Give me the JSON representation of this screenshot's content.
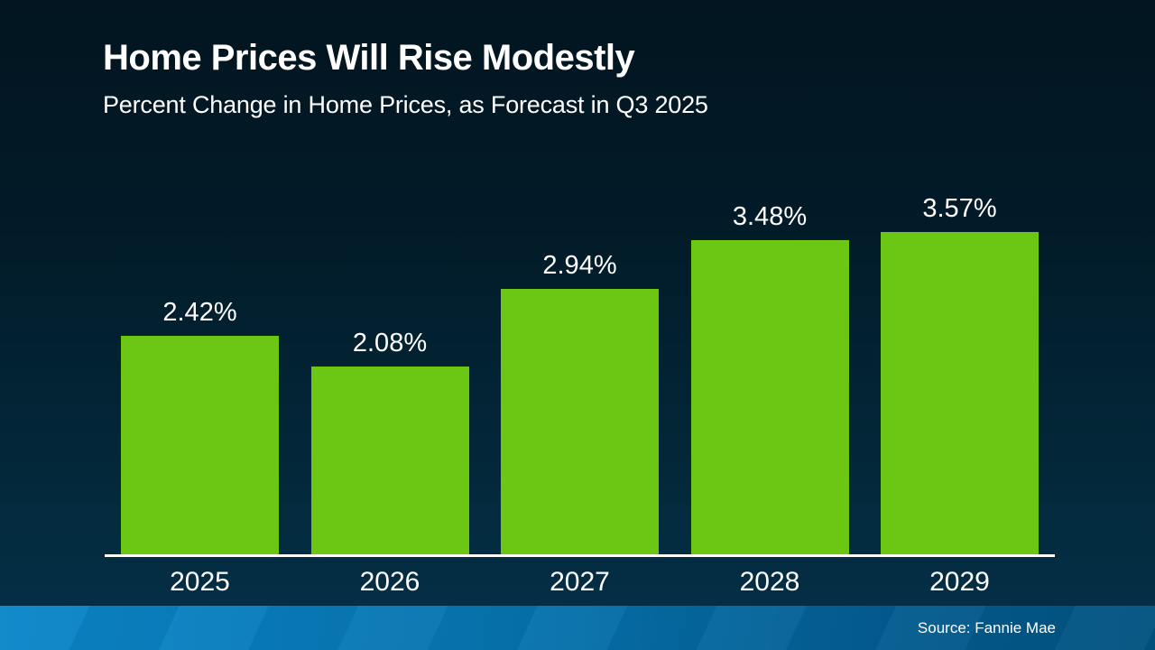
{
  "header": {
    "title": "Home Prices Will Rise Modestly",
    "subtitle": "Percent Change in Home Prices, as Forecast in Q3 2025"
  },
  "footer": {
    "source": "Source: Fannie Mae"
  },
  "colors": {
    "bar_green": "#6cc714",
    "background_top": "#021520",
    "background_bottom": "#043049",
    "footer_blue_left": "#0b86c9",
    "footer_blue_right": "#02527f",
    "text": "#ffffff",
    "axis_line": "#ffffff"
  },
  "chart_data": {
    "type": "bar",
    "title": "Home Prices Will Rise Modestly",
    "subtitle": "Percent Change in Home Prices, as Forecast in Q3 2025",
    "categories": [
      "2025",
      "2026",
      "2027",
      "2028",
      "2029"
    ],
    "values": [
      2.42,
      2.08,
      2.94,
      3.48,
      3.57
    ],
    "value_labels": [
      "2.42%",
      "2.08%",
      "2.94%",
      "3.48%",
      "3.57%"
    ],
    "xlabel": "",
    "ylabel": "",
    "ylim": [
      0,
      4
    ],
    "grid": false,
    "legend": "none",
    "bar_color": "#6cc714",
    "label_color": "#ffffff",
    "source": "Source: Fannie Mae"
  }
}
